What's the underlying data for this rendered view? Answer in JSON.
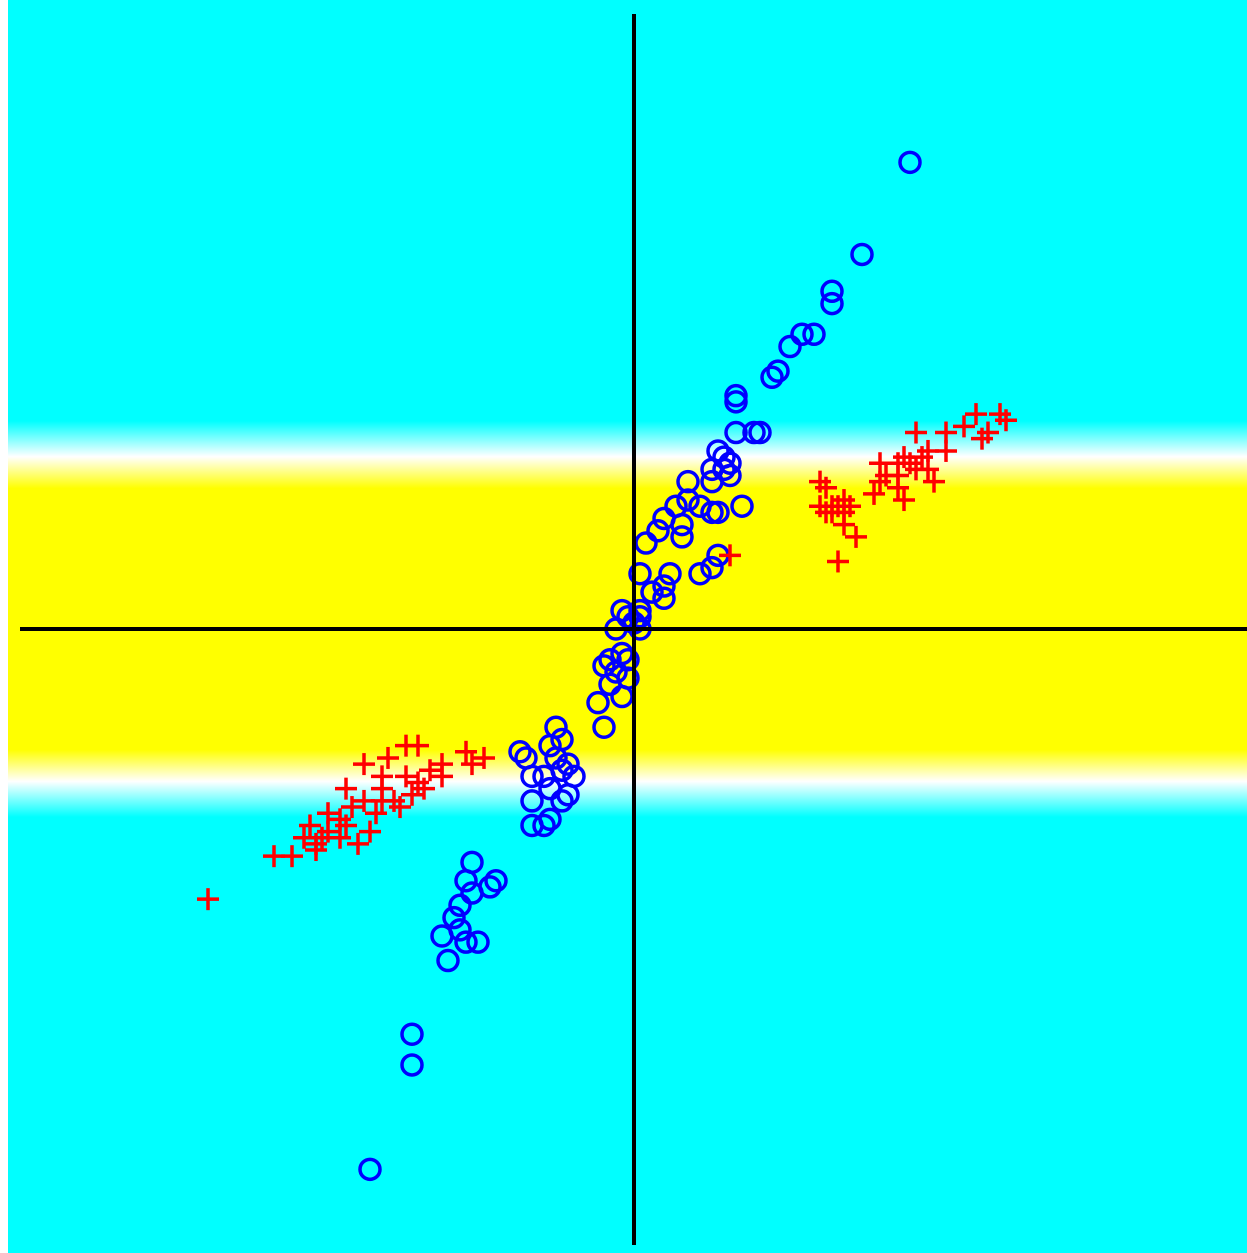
{
  "colors": {
    "background": "#00ffff",
    "band_core": "#ffff00",
    "band_edge": "#ffffff",
    "axis": "#000000",
    "series_circle": "#0000ff",
    "series_plus": "#ff0000"
  },
  "chart_data": {
    "type": "scatter",
    "xlim": [
      -1.0,
      1.0
    ],
    "ylim": [
      -1.0,
      1.0
    ],
    "grid": false,
    "legend": "none",
    "background_field": {
      "description_free": true,
      "band_center_y": 0.0,
      "band_inner_halfwidth": 0.2,
      "band_outer_halfwidth": 0.3
    },
    "series": [
      {
        "marker": "circle",
        "color": "#0000ff",
        "points": [
          [
            0.46,
            0.76
          ],
          [
            0.38,
            0.61
          ],
          [
            0.33,
            0.55
          ],
          [
            0.33,
            0.53
          ],
          [
            0.28,
            0.48
          ],
          [
            0.3,
            0.48
          ],
          [
            0.26,
            0.46
          ],
          [
            0.24,
            0.42
          ],
          [
            0.23,
            0.41
          ],
          [
            0.17,
            0.38
          ],
          [
            0.17,
            0.37
          ],
          [
            0.21,
            0.32
          ],
          [
            0.2,
            0.32
          ],
          [
            0.17,
            0.32
          ],
          [
            0.14,
            0.29
          ],
          [
            0.15,
            0.28
          ],
          [
            0.16,
            0.27
          ],
          [
            0.13,
            0.26
          ],
          [
            0.15,
            0.26
          ],
          [
            0.16,
            0.25
          ],
          [
            0.09,
            0.24
          ],
          [
            0.13,
            0.24
          ],
          [
            0.18,
            0.2
          ],
          [
            0.09,
            0.21
          ],
          [
            0.11,
            0.2
          ],
          [
            0.07,
            0.2
          ],
          [
            0.05,
            0.18
          ],
          [
            0.13,
            0.19
          ],
          [
            0.08,
            0.17
          ],
          [
            0.04,
            0.16
          ],
          [
            0.14,
            0.19
          ],
          [
            0.08,
            0.15
          ],
          [
            0.02,
            0.14
          ],
          [
            0.14,
            0.12
          ],
          [
            0.06,
            0.09
          ],
          [
            0.11,
            0.09
          ],
          [
            0.13,
            0.1
          ],
          [
            0.01,
            0.09
          ],
          [
            0.05,
            0.07
          ],
          [
            0.03,
            0.06
          ],
          [
            0.05,
            0.05
          ],
          [
            0.01,
            0.03
          ],
          [
            -0.02,
            0.03
          ],
          [
            -0.01,
            0.02
          ],
          [
            0.01,
            0.02
          ],
          [
            0.0,
            0.01
          ],
          [
            -0.03,
            0.0
          ],
          [
            0.01,
            0.0
          ],
          [
            -0.02,
            -0.04
          ],
          [
            -0.05,
            -0.06
          ],
          [
            -0.04,
            -0.05
          ],
          [
            -0.01,
            -0.05
          ],
          [
            -0.03,
            -0.07
          ],
          [
            -0.01,
            -0.08
          ],
          [
            -0.04,
            -0.09
          ],
          [
            -0.06,
            -0.12
          ],
          [
            -0.02,
            -0.11
          ],
          [
            -0.05,
            -0.16
          ],
          [
            -0.13,
            -0.16
          ],
          [
            -0.12,
            -0.18
          ],
          [
            -0.14,
            -0.19
          ],
          [
            -0.18,
            -0.21
          ],
          [
            -0.19,
            -0.2
          ],
          [
            -0.11,
            -0.22
          ],
          [
            -0.13,
            -0.21
          ],
          [
            -0.12,
            -0.23
          ],
          [
            -0.1,
            -0.24
          ],
          [
            -0.15,
            -0.24
          ],
          [
            -0.17,
            -0.24
          ],
          [
            -0.11,
            -0.27
          ],
          [
            -0.14,
            -0.26
          ],
          [
            -0.12,
            -0.28
          ],
          [
            -0.17,
            -0.28
          ],
          [
            -0.14,
            -0.31
          ],
          [
            -0.15,
            -0.32
          ],
          [
            -0.17,
            -0.32
          ],
          [
            -0.27,
            -0.38
          ],
          [
            -0.28,
            -0.41
          ],
          [
            -0.23,
            -0.41
          ],
          [
            -0.24,
            -0.42
          ],
          [
            -0.27,
            -0.43
          ],
          [
            -0.29,
            -0.45
          ],
          [
            -0.3,
            -0.47
          ],
          [
            -0.29,
            -0.49
          ],
          [
            -0.26,
            -0.51
          ],
          [
            -0.28,
            -0.51
          ],
          [
            -0.32,
            -0.5
          ],
          [
            -0.31,
            -0.54
          ],
          [
            -0.37,
            -0.66
          ],
          [
            -0.37,
            -0.71
          ],
          [
            -0.44,
            -0.88
          ]
        ]
      },
      {
        "marker": "plus",
        "color": "#ff0000",
        "points": [
          [
            0.61,
            0.35
          ],
          [
            0.57,
            0.35
          ],
          [
            0.55,
            0.33
          ],
          [
            0.62,
            0.34
          ],
          [
            0.59,
            0.32
          ],
          [
            0.58,
            0.31
          ],
          [
            0.52,
            0.32
          ],
          [
            0.47,
            0.32
          ],
          [
            0.49,
            0.29
          ],
          [
            0.52,
            0.29
          ],
          [
            0.45,
            0.28
          ],
          [
            0.48,
            0.28
          ],
          [
            0.41,
            0.27
          ],
          [
            0.46,
            0.27
          ],
          [
            0.44,
            0.27
          ],
          [
            0.49,
            0.26
          ],
          [
            0.47,
            0.26
          ],
          [
            0.5,
            0.24
          ],
          [
            0.42,
            0.25
          ],
          [
            0.44,
            0.25
          ],
          [
            0.41,
            0.24
          ],
          [
            0.44,
            0.23
          ],
          [
            0.4,
            0.22
          ],
          [
            0.45,
            0.21
          ],
          [
            0.32,
            0.23
          ],
          [
            0.34,
            0.2
          ],
          [
            0.33,
            0.19
          ],
          [
            0.31,
            0.2
          ],
          [
            0.32,
            0.19
          ],
          [
            0.35,
            0.19
          ],
          [
            0.36,
            0.2
          ],
          [
            0.33,
            0.2
          ],
          [
            0.35,
            0.21
          ],
          [
            0.37,
            0.15
          ],
          [
            0.35,
            0.17
          ],
          [
            0.16,
            0.12
          ],
          [
            0.31,
            0.24
          ],
          [
            0.34,
            0.11
          ],
          [
            -0.41,
            -0.21
          ],
          [
            -0.38,
            -0.19
          ],
          [
            -0.36,
            -0.19
          ],
          [
            -0.28,
            -0.2
          ],
          [
            -0.25,
            -0.21
          ],
          [
            -0.27,
            -0.22
          ],
          [
            -0.32,
            -0.22
          ],
          [
            -0.34,
            -0.23
          ],
          [
            -0.32,
            -0.24
          ],
          [
            -0.38,
            -0.24
          ],
          [
            -0.36,
            -0.25
          ],
          [
            -0.35,
            -0.26
          ],
          [
            -0.42,
            -0.26
          ],
          [
            -0.37,
            -0.27
          ],
          [
            -0.45,
            -0.28
          ],
          [
            -0.48,
            -0.26
          ],
          [
            -0.42,
            -0.28
          ],
          [
            -0.4,
            -0.28
          ],
          [
            -0.47,
            -0.29
          ],
          [
            -0.51,
            -0.3
          ],
          [
            -0.39,
            -0.29
          ],
          [
            -0.43,
            -0.3
          ],
          [
            -0.49,
            -0.31
          ],
          [
            -0.48,
            -0.32
          ],
          [
            -0.54,
            -0.32
          ],
          [
            -0.51,
            -0.33
          ],
          [
            -0.55,
            -0.34
          ],
          [
            -0.49,
            -0.34
          ],
          [
            -0.44,
            -0.33
          ],
          [
            -0.46,
            -0.35
          ],
          [
            -0.52,
            -0.34
          ],
          [
            -0.53,
            -0.35
          ],
          [
            -0.6,
            -0.37
          ],
          [
            -0.57,
            -0.37
          ],
          [
            -0.53,
            -0.36
          ],
          [
            -0.71,
            -0.44
          ],
          [
            -0.45,
            -0.22
          ],
          [
            -0.42,
            -0.24
          ]
        ]
      }
    ]
  }
}
